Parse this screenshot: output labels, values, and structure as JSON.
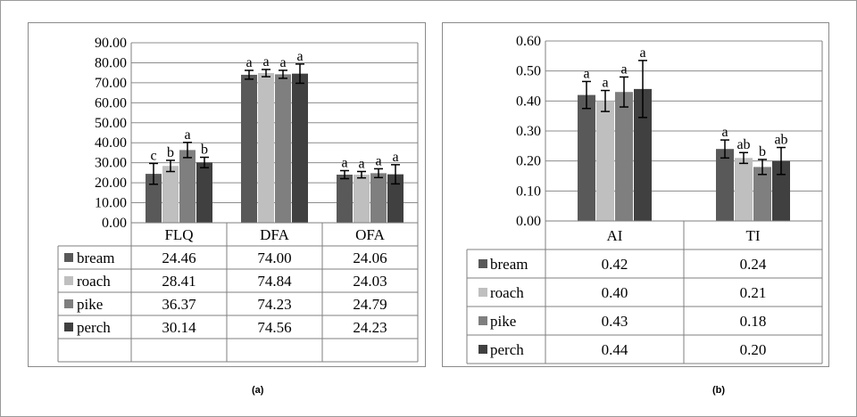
{
  "captions": {
    "a": "(a)",
    "b": "(b)"
  },
  "colors": {
    "bream": "#595959",
    "roach": "#bfbfbf",
    "pike": "#7f7f7f",
    "perch": "#404040",
    "grid": "#8c8c8c",
    "axis": "#7f7f7f"
  },
  "chart_data": [
    {
      "type": "bar",
      "categories": [
        "FLQ",
        "DFA",
        "OFA"
      ],
      "series": [
        {
          "name": "bream",
          "values": [
            24.46,
            74.0,
            24.06
          ],
          "errors": [
            5.2,
            2.2,
            2.0
          ],
          "letters": [
            "c",
            "a",
            "a"
          ]
        },
        {
          "name": "roach",
          "values": [
            28.41,
            74.84,
            24.03
          ],
          "errors": [
            2.8,
            1.8,
            1.6
          ],
          "letters": [
            "b",
            "a",
            "a"
          ]
        },
        {
          "name": "pike",
          "values": [
            36.37,
            74.23,
            24.79
          ],
          "errors": [
            3.8,
            2.0,
            2.2
          ],
          "letters": [
            "a",
            "a",
            "a"
          ]
        },
        {
          "name": "perch",
          "values": [
            30.14,
            74.56,
            24.23
          ],
          "errors": [
            2.6,
            4.8,
            4.8
          ],
          "letters": [
            "b",
            "a",
            "a"
          ]
        }
      ],
      "table_values": [
        [
          "24.46",
          "74.00",
          "24.06"
        ],
        [
          "28.41",
          "74.84",
          "24.03"
        ],
        [
          "36.37",
          "74.23",
          "24.79"
        ],
        [
          "30.14",
          "74.56",
          "24.23"
        ]
      ],
      "yticks": [
        "0.00",
        "10.00",
        "20.00",
        "30.00",
        "40.00",
        "50.00",
        "60.00",
        "70.00",
        "80.00",
        "90.00"
      ],
      "ylim": [
        0,
        90
      ],
      "grid": true,
      "legend": "data-table"
    },
    {
      "type": "bar",
      "categories": [
        "AI",
        "TI"
      ],
      "series": [
        {
          "name": "bream",
          "values": [
            0.42,
            0.24
          ],
          "errors": [
            0.045,
            0.03
          ],
          "letters": [
            "a",
            "a"
          ]
        },
        {
          "name": "roach",
          "values": [
            0.4,
            0.21
          ],
          "errors": [
            0.035,
            0.018
          ],
          "letters": [
            "a",
            "ab"
          ]
        },
        {
          "name": "pike",
          "values": [
            0.43,
            0.18
          ],
          "errors": [
            0.05,
            0.025
          ],
          "letters": [
            "a",
            "b"
          ]
        },
        {
          "name": "perch",
          "values": [
            0.44,
            0.2
          ],
          "errors": [
            0.095,
            0.045
          ],
          "letters": [
            "a",
            "ab"
          ]
        }
      ],
      "table_values": [
        [
          "0.42",
          "0.24"
        ],
        [
          "0.40",
          "0.21"
        ],
        [
          "0.43",
          "0.18"
        ],
        [
          "0.44",
          "0.20"
        ]
      ],
      "yticks": [
        "0.00",
        "0.10",
        "0.20",
        "0.30",
        "0.40",
        "0.50",
        "0.60"
      ],
      "ylim": [
        0,
        0.6
      ],
      "grid": true,
      "legend": "data-table"
    }
  ]
}
